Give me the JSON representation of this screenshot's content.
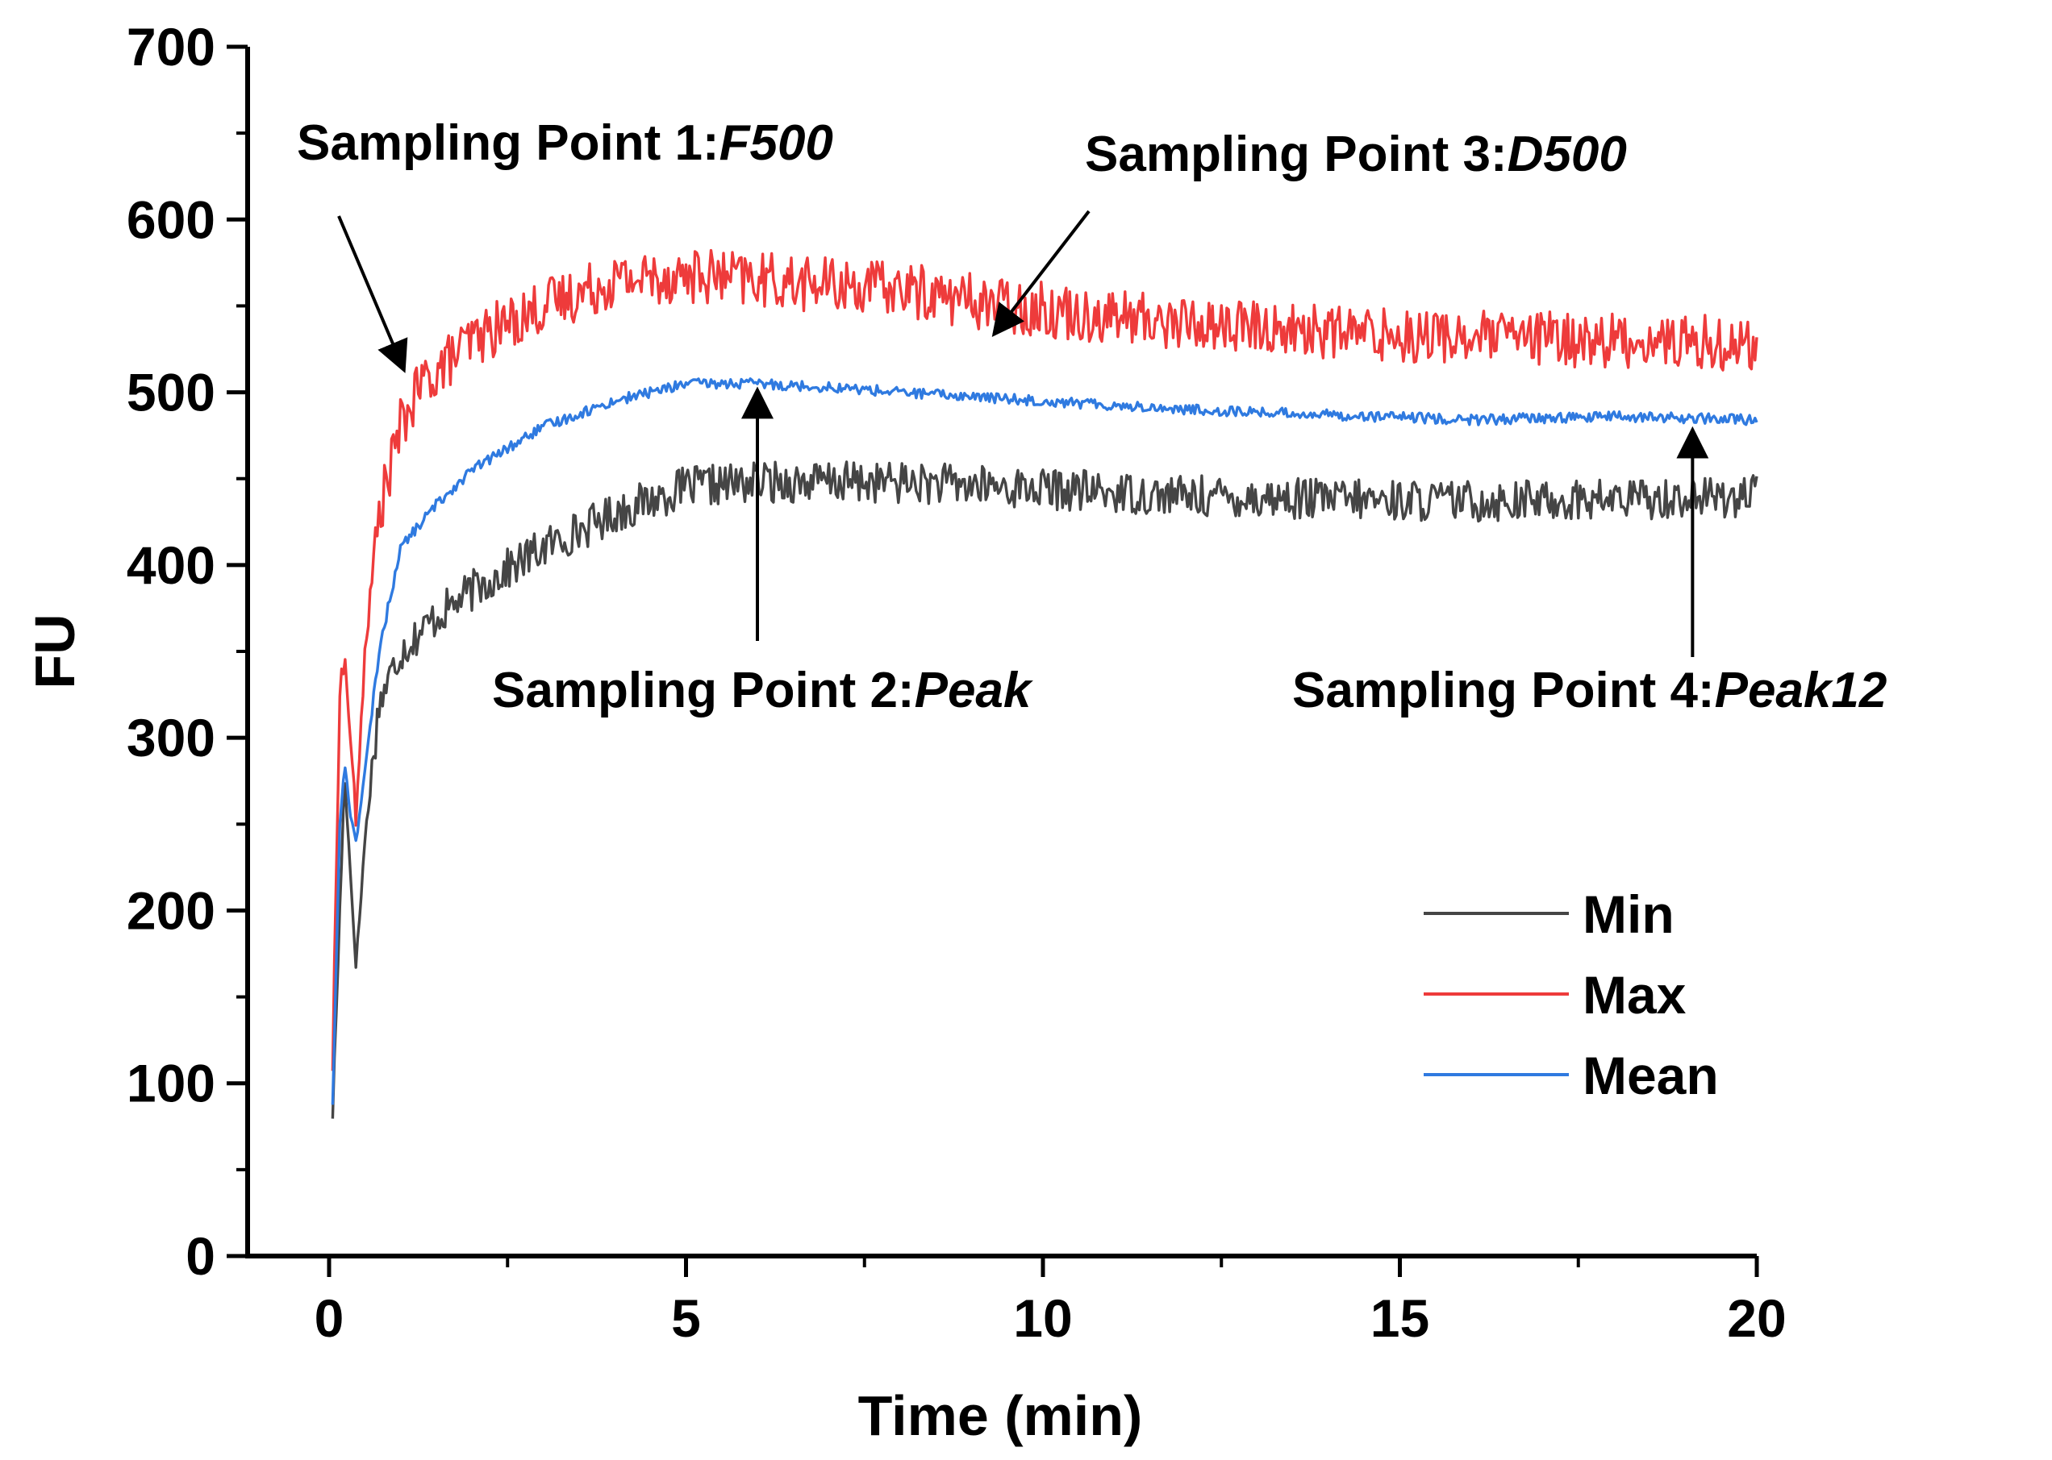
{
  "chart_data": {
    "type": "line",
    "title": "",
    "xlabel": "Time (min)",
    "ylabel": "FU",
    "xlim": [
      -0.3,
      20
    ],
    "ylim": [
      0,
      700
    ],
    "xticks": [
      0,
      5,
      10,
      15,
      20
    ],
    "yticks": [
      0,
      100,
      200,
      300,
      400,
      500,
      600,
      700
    ],
    "x_minor_step": 2.5,
    "y_minor_step": 50,
    "legend": {
      "position": "bottom-right",
      "entries": [
        "Min",
        "Max",
        "Mean"
      ]
    },
    "series": [
      {
        "name": "Min",
        "color": "#454545",
        "noise": 12,
        "points": [
          [
            0.05,
            82
          ],
          [
            0.15,
            200
          ],
          [
            0.22,
            280
          ],
          [
            0.3,
            220
          ],
          [
            0.38,
            168
          ],
          [
            0.5,
            240
          ],
          [
            0.7,
            320
          ],
          [
            1.0,
            350
          ],
          [
            1.5,
            370
          ],
          [
            2.0,
            385
          ],
          [
            3.0,
            410
          ],
          [
            4.0,
            430
          ],
          [
            5.0,
            445
          ],
          [
            6.0,
            448
          ],
          [
            8.0,
            448
          ],
          [
            10.0,
            444
          ],
          [
            12.0,
            440
          ],
          [
            14.0,
            438
          ],
          [
            16.0,
            437
          ],
          [
            18.0,
            438
          ],
          [
            20.0,
            440
          ]
        ]
      },
      {
        "name": "Max",
        "color": "#ee3b3b",
        "noise": 16,
        "points": [
          [
            0.05,
            110
          ],
          [
            0.15,
            330
          ],
          [
            0.22,
            345
          ],
          [
            0.3,
            300
          ],
          [
            0.38,
            250
          ],
          [
            0.5,
            350
          ],
          [
            0.7,
            430
          ],
          [
            1.0,
            480
          ],
          [
            1.3,
            505
          ],
          [
            2.0,
            530
          ],
          [
            3.0,
            550
          ],
          [
            4.0,
            565
          ],
          [
            5.0,
            568
          ],
          [
            6.0,
            565
          ],
          [
            7.0,
            562
          ],
          [
            8.0,
            560
          ],
          [
            9.0,
            553
          ],
          [
            10.0,
            548
          ],
          [
            12.0,
            540
          ],
          [
            14.0,
            535
          ],
          [
            16.0,
            532
          ],
          [
            18.0,
            530
          ],
          [
            20.0,
            528
          ]
        ]
      },
      {
        "name": "Mean",
        "color": "#2f7ae0",
        "noise": 3,
        "points": [
          [
            0.05,
            88
          ],
          [
            0.15,
            250
          ],
          [
            0.22,
            285
          ],
          [
            0.3,
            255
          ],
          [
            0.38,
            240
          ],
          [
            0.5,
            280
          ],
          [
            0.7,
            350
          ],
          [
            1.0,
            410
          ],
          [
            1.5,
            435
          ],
          [
            2.0,
            455
          ],
          [
            3.0,
            480
          ],
          [
            4.0,
            495
          ],
          [
            5.0,
            505
          ],
          [
            6.0,
            505
          ],
          [
            7.0,
            503
          ],
          [
            8.0,
            500
          ],
          [
            10.0,
            495
          ],
          [
            12.0,
            490
          ],
          [
            14.0,
            487
          ],
          [
            16.0,
            484
          ],
          [
            18.0,
            486
          ],
          [
            20.0,
            484
          ]
        ]
      }
    ],
    "annotations": [
      {
        "label": "Sampling Point 1:",
        "label_em": "F500",
        "target": [
          1.05,
          510
        ],
        "anchor": "above-left"
      },
      {
        "label": "Sampling Point 2:",
        "label_em": "Peak",
        "target": [
          6.0,
          508
        ],
        "anchor": "below"
      },
      {
        "label": "Sampling Point 3:",
        "label_em": "D500",
        "target": [
          9.2,
          540
        ],
        "anchor": "above-right"
      },
      {
        "label": "Sampling Point 4:",
        "label_em": "Peak12",
        "target": [
          19.1,
          485
        ],
        "anchor": "below"
      }
    ]
  }
}
